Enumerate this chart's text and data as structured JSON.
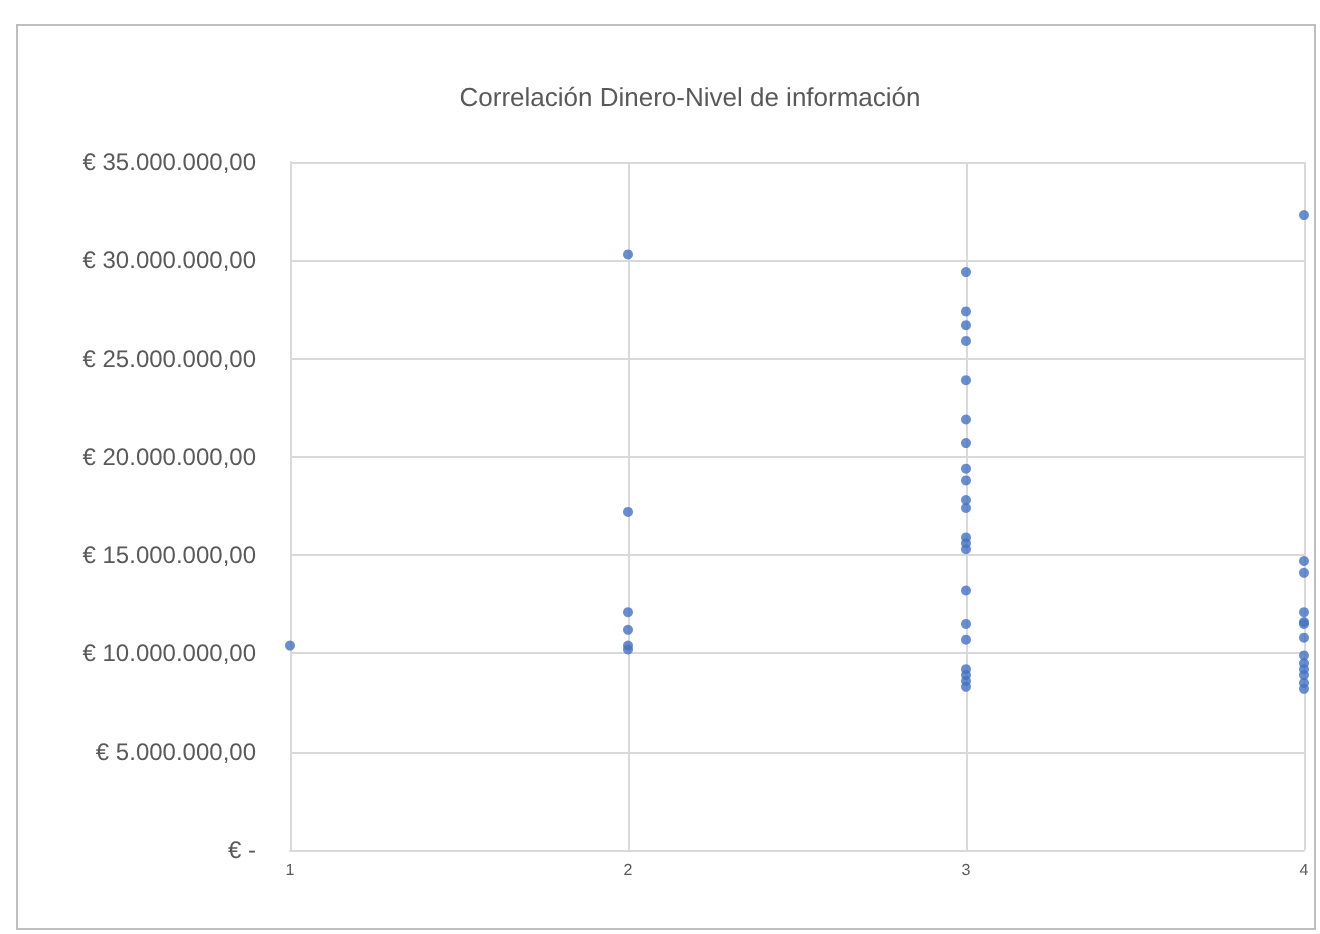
{
  "chart_data": {
    "type": "scatter",
    "title": "Correlación Dinero-Nivel de información",
    "x": [
      1,
      2,
      2,
      2,
      2,
      2,
      2,
      3,
      3,
      3,
      3,
      3,
      3,
      3,
      3,
      3,
      3,
      3,
      3,
      3,
      3,
      3,
      3,
      3,
      3,
      3,
      3,
      3,
      4,
      4,
      4,
      4,
      4,
      4,
      4,
      4,
      4,
      4,
      4,
      4,
      4
    ],
    "values": [
      10400000,
      30300000,
      17200000,
      12100000,
      11200000,
      10400000,
      10200000,
      29400000,
      27400000,
      26700000,
      25900000,
      23900000,
      21900000,
      20700000,
      19400000,
      18800000,
      17800000,
      17400000,
      15900000,
      15600000,
      15300000,
      13200000,
      11500000,
      10700000,
      9200000,
      8900000,
      8600000,
      8300000,
      32300000,
      14700000,
      14100000,
      12100000,
      11600000,
      11500000,
      10800000,
      9900000,
      9500000,
      9200000,
      8900000,
      8500000,
      8200000
    ],
    "color": "#4472c4",
    "marker": "circle",
    "grid": true,
    "xlim": [
      1,
      4
    ],
    "xticks": [
      1,
      2,
      3,
      4
    ],
    "ylim": [
      0,
      35000000
    ],
    "yticks": [
      {
        "value": 0,
        "label": "€ -"
      },
      {
        "value": 5000000,
        "label": "€ 5.000.000,00"
      },
      {
        "value": 10000000,
        "label": "€ 10.000.000,00"
      },
      {
        "value": 15000000,
        "label": "€ 15.000.000,00"
      },
      {
        "value": 20000000,
        "label": "€ 20.000.000,00"
      },
      {
        "value": 25000000,
        "label": "€ 25.000.000,00"
      },
      {
        "value": 30000000,
        "label": "€ 30.000.000,00"
      },
      {
        "value": 35000000,
        "label": "€ 35.000.000,00"
      }
    ]
  }
}
